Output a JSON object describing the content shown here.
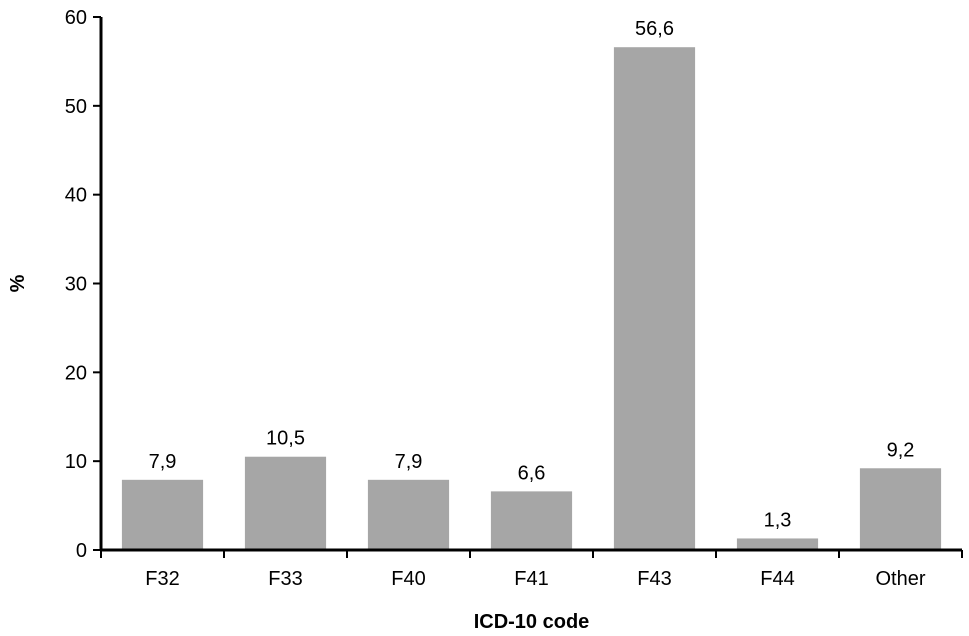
{
  "chart_data": {
    "type": "bar",
    "categories": [
      "F32",
      "F33",
      "F40",
      "F41",
      "F43",
      "F44",
      "Other"
    ],
    "values": [
      7.9,
      10.5,
      7.9,
      6.6,
      56.6,
      1.3,
      9.2
    ],
    "value_labels": [
      "7,9",
      "10,5",
      "7,9",
      "6,6",
      "56,6",
      "1,3",
      "9,2"
    ],
    "xlabel": "ICD-10 code",
    "ylabel": "%",
    "ylim": [
      0,
      60
    ],
    "yticks": [
      0,
      10,
      20,
      30,
      40,
      50,
      60
    ],
    "grid": false,
    "bar_color": "#a6a6a6"
  }
}
